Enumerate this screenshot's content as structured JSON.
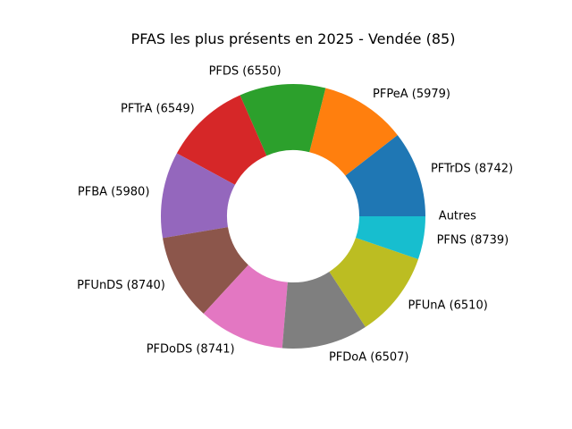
{
  "chart_data": {
    "type": "pie",
    "donut": true,
    "title": "PFAS les plus présents en 2025 - Vendée (85)",
    "start_angle_deg": 0,
    "direction": "counterclockwise",
    "slices": [
      {
        "label": "PFTrDS (8742)",
        "value": 10.0,
        "color": "#1f77b4"
      },
      {
        "label": "PFPeA (5979)",
        "value": 10.0,
        "color": "#ff7f0e"
      },
      {
        "label": "PFDS (6550)",
        "value": 10.0,
        "color": "#2ca02c"
      },
      {
        "label": "PFTrA (6549)",
        "value": 10.0,
        "color": "#d62728"
      },
      {
        "label": "PFBA (5980)",
        "value": 10.0,
        "color": "#9467bd"
      },
      {
        "label": "PFUnDS (8740)",
        "value": 10.0,
        "color": "#8c564b"
      },
      {
        "label": "PFDoDS (8741)",
        "value": 10.0,
        "color": "#e377c2"
      },
      {
        "label": "PFDoA (6507)",
        "value": 10.0,
        "color": "#7f7f7f"
      },
      {
        "label": "PFUnA (6510)",
        "value": 10.0,
        "color": "#bcbd22"
      },
      {
        "label": "PFNS (8739)",
        "value": 5.0,
        "color": "#17becf"
      },
      {
        "label": "Autres",
        "value": 0.0,
        "color": "#1f77b4"
      }
    ]
  }
}
